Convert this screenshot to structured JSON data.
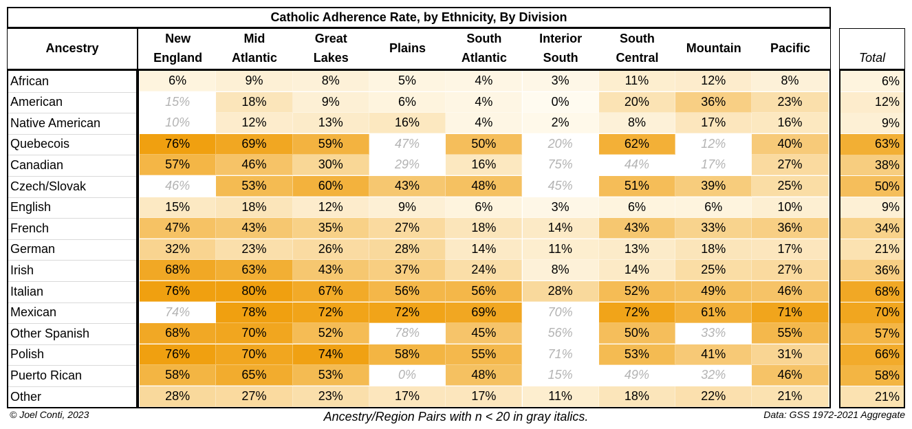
{
  "chart_data": {
    "type": "heatmap",
    "title": "Catholic Adherence Rate, by Ethnicity, By Division",
    "row_header": "Ancestry",
    "columns": [
      "New\nEngland",
      "Mid\nAtlantic",
      "Great\nLakes",
      "Plains",
      "South\nAtlantic",
      "Interior\nSouth",
      "South\nCentral",
      "Mountain",
      "Pacific"
    ],
    "total_header": "Total",
    "rows": [
      {
        "label": "African",
        "values": [
          "6%",
          "9%",
          "8%",
          "5%",
          "4%",
          "3%",
          "11%",
          "12%",
          "8%"
        ],
        "small_n": [
          false,
          false,
          false,
          false,
          false,
          false,
          false,
          false,
          false
        ],
        "total": "6%"
      },
      {
        "label": "American",
        "values": [
          "15%",
          "18%",
          "9%",
          "6%",
          "4%",
          "0%",
          "20%",
          "36%",
          "23%"
        ],
        "small_n": [
          true,
          false,
          false,
          false,
          false,
          false,
          false,
          false,
          false
        ],
        "total": "12%"
      },
      {
        "label": "Native American",
        "values": [
          "10%",
          "12%",
          "13%",
          "16%",
          "4%",
          "2%",
          "8%",
          "17%",
          "16%"
        ],
        "small_n": [
          true,
          false,
          false,
          false,
          false,
          false,
          false,
          false,
          false
        ],
        "total": "9%"
      },
      {
        "label": "Quebecois",
        "values": [
          "76%",
          "69%",
          "59%",
          "47%",
          "50%",
          "20%",
          "62%",
          "12%",
          "40%"
        ],
        "small_n": [
          false,
          false,
          false,
          true,
          false,
          true,
          false,
          true,
          false
        ],
        "total": "63%"
      },
      {
        "label": "Canadian",
        "values": [
          "57%",
          "46%",
          "30%",
          "29%",
          "16%",
          "75%",
          "44%",
          "17%",
          "27%"
        ],
        "small_n": [
          false,
          false,
          false,
          true,
          false,
          true,
          true,
          true,
          false
        ],
        "total": "38%"
      },
      {
        "label": "Czech/Slovak",
        "values": [
          "46%",
          "53%",
          "60%",
          "43%",
          "48%",
          "45%",
          "51%",
          "39%",
          "25%"
        ],
        "small_n": [
          true,
          false,
          false,
          false,
          false,
          true,
          false,
          false,
          false
        ],
        "total": "50%"
      },
      {
        "label": "English",
        "values": [
          "15%",
          "18%",
          "12%",
          "9%",
          "6%",
          "3%",
          "6%",
          "6%",
          "10%"
        ],
        "small_n": [
          false,
          false,
          false,
          false,
          false,
          false,
          false,
          false,
          false
        ],
        "total": "9%"
      },
      {
        "label": "French",
        "values": [
          "47%",
          "43%",
          "35%",
          "27%",
          "18%",
          "14%",
          "43%",
          "33%",
          "36%"
        ],
        "small_n": [
          false,
          false,
          false,
          false,
          false,
          false,
          false,
          false,
          false
        ],
        "total": "34%"
      },
      {
        "label": "German",
        "values": [
          "32%",
          "23%",
          "26%",
          "28%",
          "14%",
          "11%",
          "13%",
          "18%",
          "17%"
        ],
        "small_n": [
          false,
          false,
          false,
          false,
          false,
          false,
          false,
          false,
          false
        ],
        "total": "21%"
      },
      {
        "label": "Irish",
        "values": [
          "68%",
          "63%",
          "43%",
          "37%",
          "24%",
          "8%",
          "14%",
          "25%",
          "27%"
        ],
        "small_n": [
          false,
          false,
          false,
          false,
          false,
          false,
          false,
          false,
          false
        ],
        "total": "36%"
      },
      {
        "label": "Italian",
        "values": [
          "76%",
          "80%",
          "67%",
          "56%",
          "56%",
          "28%",
          "52%",
          "49%",
          "46%"
        ],
        "small_n": [
          false,
          false,
          false,
          false,
          false,
          false,
          false,
          false,
          false
        ],
        "total": "68%"
      },
      {
        "label": "Mexican",
        "values": [
          "74%",
          "78%",
          "72%",
          "72%",
          "69%",
          "70%",
          "72%",
          "61%",
          "71%"
        ],
        "small_n": [
          true,
          false,
          false,
          false,
          false,
          true,
          false,
          false,
          false
        ],
        "total": "70%"
      },
      {
        "label": "Other Spanish",
        "values": [
          "68%",
          "70%",
          "52%",
          "78%",
          "45%",
          "56%",
          "50%",
          "33%",
          "55%"
        ],
        "small_n": [
          false,
          false,
          false,
          true,
          false,
          true,
          false,
          true,
          false
        ],
        "total": "57%"
      },
      {
        "label": "Polish",
        "values": [
          "76%",
          "70%",
          "74%",
          "58%",
          "55%",
          "71%",
          "53%",
          "41%",
          "31%"
        ],
        "small_n": [
          false,
          false,
          false,
          false,
          false,
          true,
          false,
          false,
          false
        ],
        "total": "66%"
      },
      {
        "label": "Puerto Rican",
        "values": [
          "58%",
          "65%",
          "53%",
          "0%",
          "48%",
          "15%",
          "49%",
          "32%",
          "46%"
        ],
        "small_n": [
          false,
          false,
          false,
          true,
          false,
          true,
          true,
          true,
          false
        ],
        "total": "58%"
      },
      {
        "label": "Other",
        "values": [
          "28%",
          "27%",
          "23%",
          "17%",
          "17%",
          "11%",
          "18%",
          "22%",
          "21%"
        ],
        "small_n": [
          false,
          false,
          false,
          false,
          false,
          false,
          false,
          false,
          false
        ],
        "total": "21%"
      }
    ]
  },
  "footer": {
    "credit": "© Joel Conti, 2023",
    "note": "Ancestry/Region Pairs with n < 20 in gray italics.",
    "source": "Data: GSS 1972-2021 Aggregate"
  },
  "colors": {
    "scale_low": "#fffbf0",
    "scale_high": "#f0a010",
    "small_n_bg": "#ffffff",
    "small_n_text": "#b3b3b3"
  }
}
